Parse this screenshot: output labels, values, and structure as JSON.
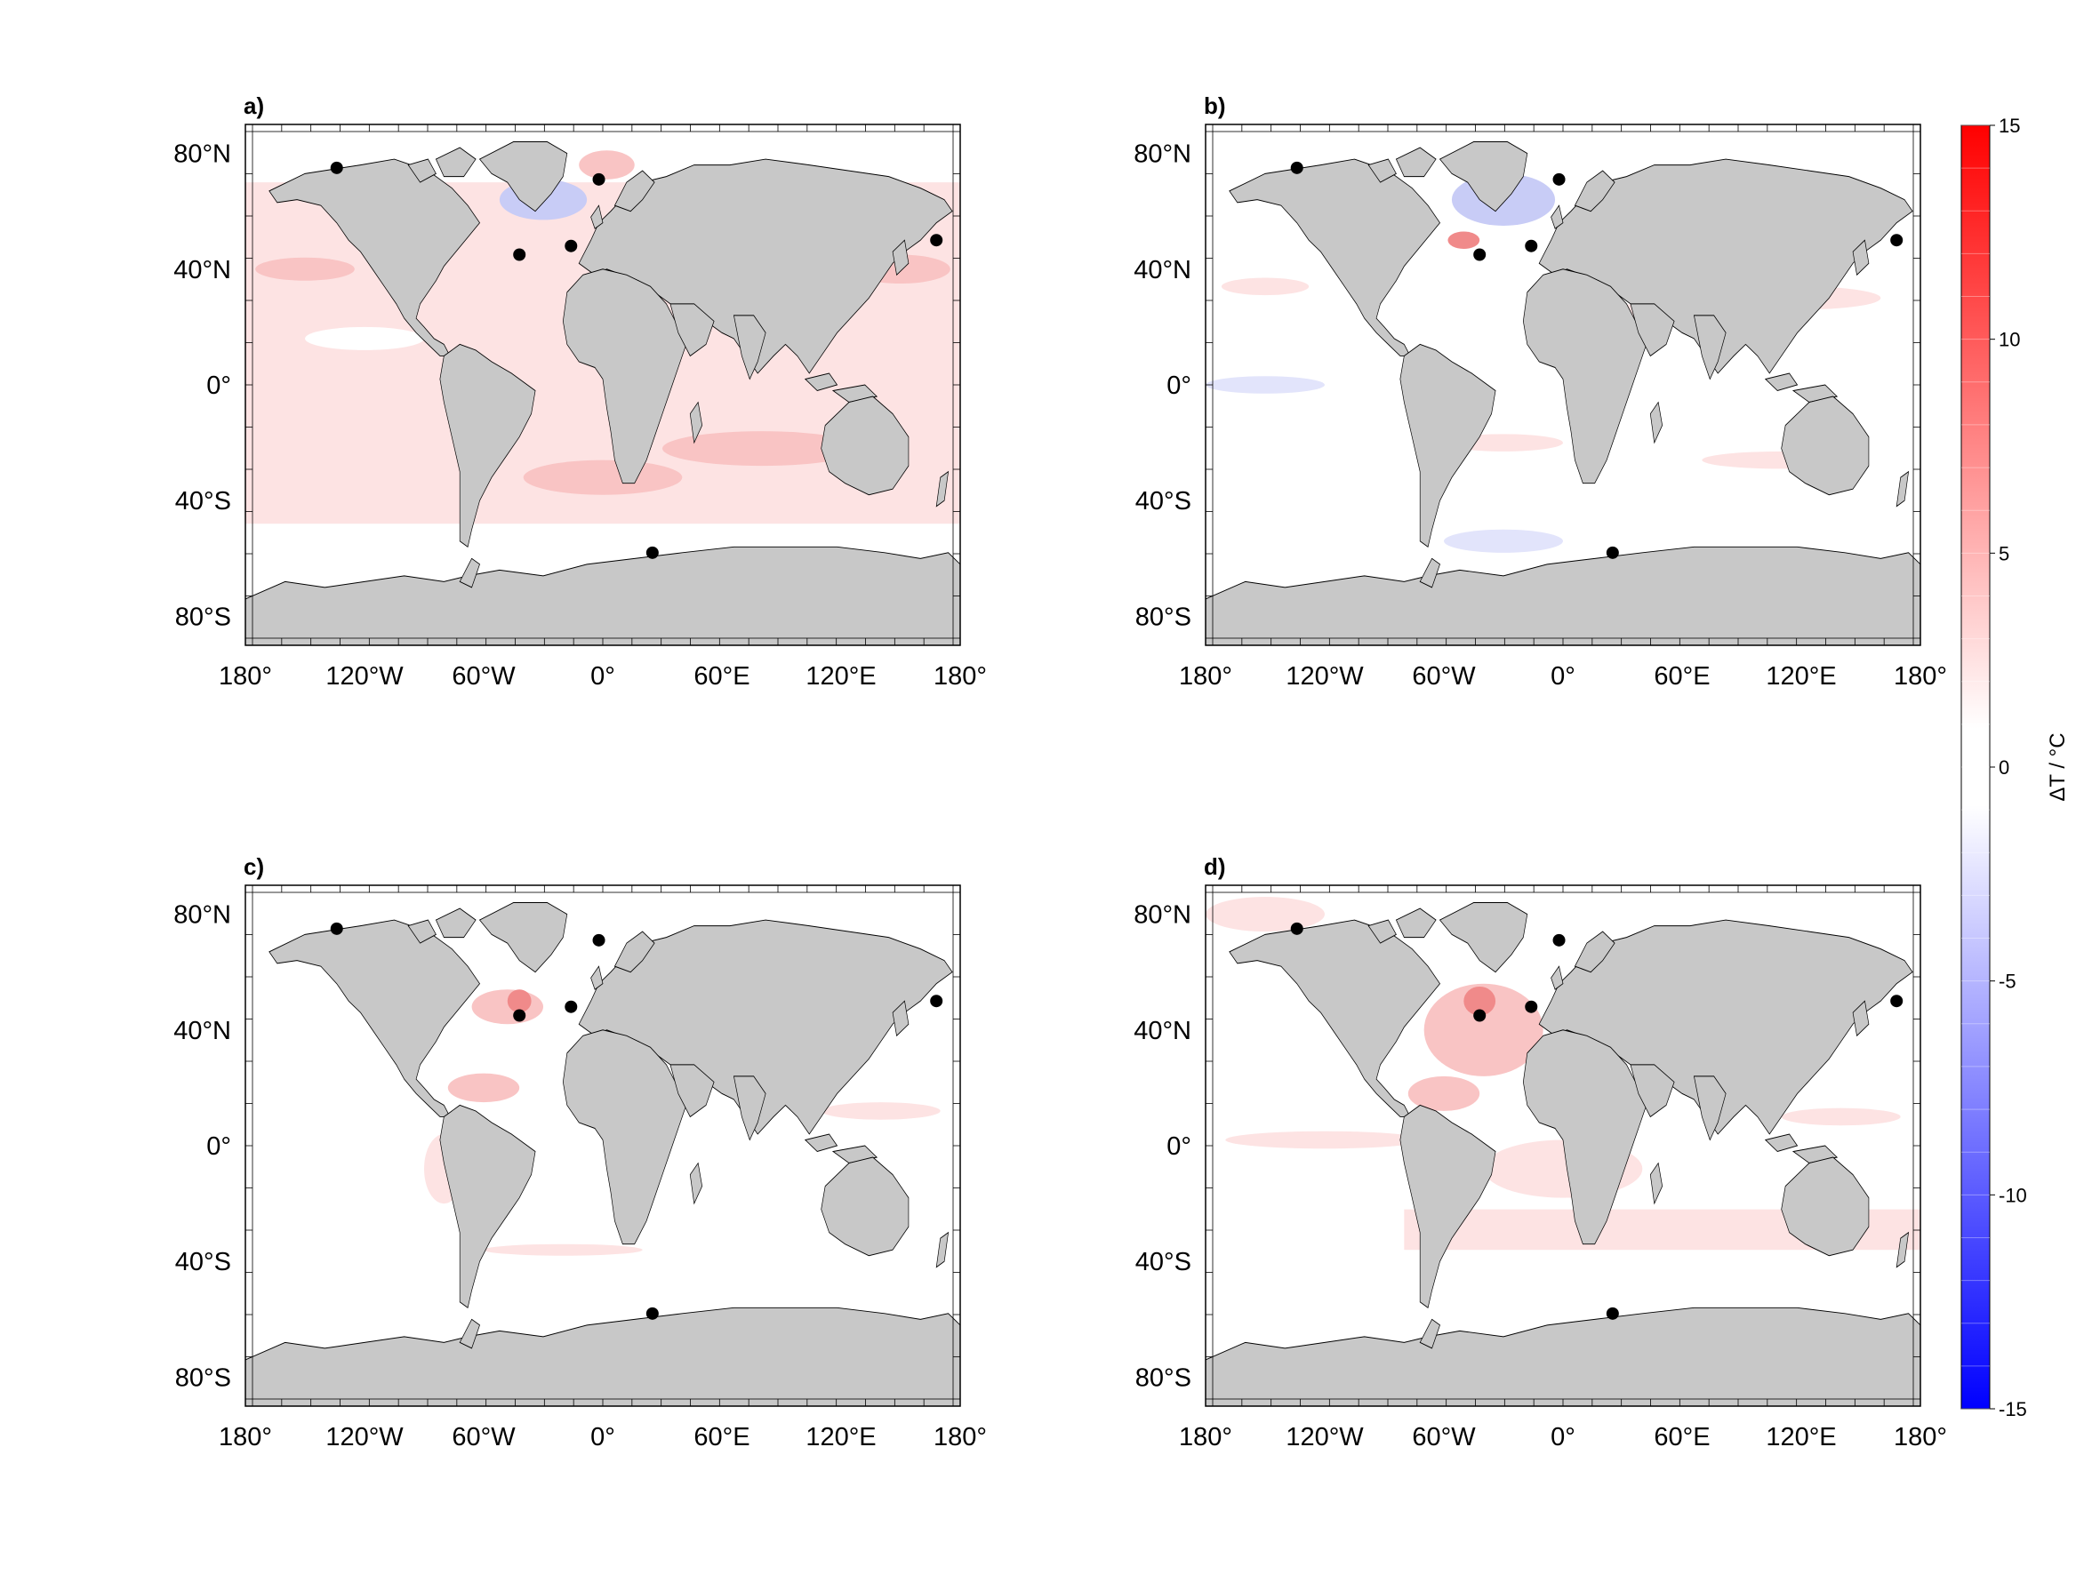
{
  "panels": [
    {
      "label": "a)",
      "x_ticks": [
        "180°",
        "120°W",
        "60°W",
        "0°",
        "60°E",
        "120°E",
        "180°"
      ],
      "y_ticks": [
        "80°N",
        "40°N",
        "0°",
        "40°S",
        "80°S"
      ],
      "markers": [
        {
          "lon": -134,
          "lat": 75
        },
        {
          "lon": -2,
          "lat": 71
        },
        {
          "lon": -42,
          "lat": 45
        },
        {
          "lon": -16,
          "lat": 48
        },
        {
          "lon": 168,
          "lat": 50
        },
        {
          "lon": 25,
          "lat": -58
        }
      ]
    },
    {
      "label": "b)",
      "x_ticks": [
        "180°",
        "120°W",
        "60°W",
        "0°",
        "60°E",
        "120°E",
        "180°"
      ],
      "y_ticks": [
        "80°N",
        "40°N",
        "0°",
        "40°S",
        "80°S"
      ],
      "markers": [
        {
          "lon": -134,
          "lat": 75
        },
        {
          "lon": -2,
          "lat": 71
        },
        {
          "lon": -42,
          "lat": 45
        },
        {
          "lon": -16,
          "lat": 48
        },
        {
          "lon": 168,
          "lat": 50
        },
        {
          "lon": 25,
          "lat": -58
        }
      ]
    },
    {
      "label": "c)",
      "x_ticks": [
        "180°",
        "120°W",
        "60°W",
        "0°",
        "60°E",
        "120°E",
        "180°"
      ],
      "y_ticks": [
        "80°N",
        "40°N",
        "0°",
        "40°S",
        "80°S"
      ],
      "markers": [
        {
          "lon": -134,
          "lat": 75
        },
        {
          "lon": -2,
          "lat": 71
        },
        {
          "lon": -42,
          "lat": 45
        },
        {
          "lon": -16,
          "lat": 48
        },
        {
          "lon": 168,
          "lat": 50
        },
        {
          "lon": 25,
          "lat": -58
        }
      ]
    },
    {
      "label": "d)",
      "x_ticks": [
        "180°",
        "120°W",
        "60°W",
        "0°",
        "60°E",
        "120°E",
        "180°"
      ],
      "y_ticks": [
        "80°N",
        "40°N",
        "0°",
        "40°S",
        "80°S"
      ],
      "markers": [
        {
          "lon": -134,
          "lat": 75
        },
        {
          "lon": -2,
          "lat": 71
        },
        {
          "lon": -42,
          "lat": 45
        },
        {
          "lon": -16,
          "lat": 48
        },
        {
          "lon": 168,
          "lat": 50
        },
        {
          "lon": 25,
          "lat": -58
        }
      ]
    }
  ],
  "colorbar": {
    "title": "ΔT / °C",
    "min": -15,
    "max": 15,
    "ticks": [
      "15",
      "10",
      "5",
      "0",
      "-5",
      "-10",
      "-15"
    ],
    "tick_values": [
      15,
      10,
      5,
      0,
      -5,
      -10,
      -15
    ]
  },
  "colors": {
    "land": "#c8c8c8",
    "warm_light": "#fde3e3",
    "warm_mid": "#f9c4c4",
    "warm_strong": "#f08a8a",
    "cool_light": "#e2e4fb",
    "cool_mid": "#c8ccf6",
    "marker": "#000000",
    "cbar_top": "#ff0000",
    "cbar_bottom": "#0000ff"
  }
}
